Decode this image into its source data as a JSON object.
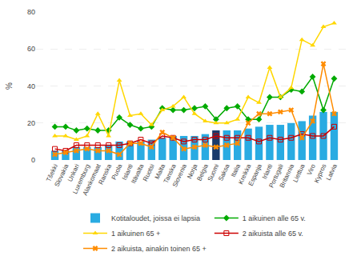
{
  "chart_data": {
    "type": "bar",
    "ylabel": "%",
    "categories": [
      "Tšekki",
      "Slovakia",
      "Unkari",
      "Luxemburg",
      "Alankomaat",
      "Ranska",
      "Puola",
      "Islanti",
      "Itävalta",
      "Ruotsi",
      "Malta",
      "Tanska",
      "Slovenia",
      "Norja",
      "Belgia",
      "Suomi",
      "Saksa",
      "Italia",
      "Kreikka",
      "Espanja",
      "Irlanti",
      "Portugali",
      "Britannia",
      "Liettua",
      "Viro",
      "Kypros",
      "Latvia"
    ],
    "series": [
      {
        "name": "Kotitaloudet, joissa ei lapsia",
        "type": "bar",
        "colors": [
          "#29ABE2",
          "#29ABE2",
          "#29ABE2",
          "#29ABE2",
          "#29ABE2",
          "#29ABE2",
          "#29ABE2",
          "#29ABE2",
          "#29ABE2",
          "#29ABE2",
          "#29ABE2",
          "#29ABE2",
          "#29ABE2",
          "#29ABE2",
          "#29ABE2",
          "#1A3A6B",
          "#29ABE2",
          "#29ABE2",
          "#29ABE2",
          "#29ABE2",
          "#29ABE2",
          "#29ABE2",
          "#29ABE2",
          "#29ABE2",
          "#29ABE2",
          "#29ABE2",
          "#29ABE2"
        ],
        "values": [
          5,
          5,
          7,
          7,
          7,
          8,
          10,
          10,
          10,
          11,
          12,
          13,
          13,
          13,
          14,
          16,
          16,
          16,
          17,
          18,
          19,
          19,
          20,
          21,
          24,
          26,
          26
        ]
      },
      {
        "name": "1 aikuinen alle 65 v.",
        "type": "line",
        "color": "#00AA00",
        "marker": "diamond",
        "values": [
          18,
          18,
          16,
          17,
          16,
          16,
          23,
          19,
          17,
          18,
          28,
          27,
          27,
          28,
          29,
          22,
          28,
          29,
          22,
          22,
          34,
          34,
          38,
          37,
          45,
          27,
          44
        ]
      },
      {
        "name": "1 aikuinen 65 +",
        "type": "line",
        "color": "#FFD700",
        "marker": "triangle-up",
        "values": [
          13,
          13,
          11,
          13,
          25,
          13,
          43,
          24,
          25,
          19,
          27,
          29,
          34,
          25,
          21,
          20,
          20,
          22,
          34,
          31,
          50,
          34,
          39,
          65,
          62,
          72,
          74
        ]
      },
      {
        "name": "2 aikuista alle 65 v.",
        "type": "line",
        "color": "#CC0000",
        "marker": "square-open",
        "values": [
          6,
          5,
          8,
          8,
          8,
          8,
          8,
          9,
          11,
          9,
          13,
          12,
          10,
          11,
          11,
          13,
          12,
          12,
          12,
          10,
          12,
          11,
          12,
          14,
          13,
          13,
          18
        ]
      },
      {
        "name": "2 aikuista, ainakin toinen 65 +",
        "type": "line",
        "color": "#FF8C00",
        "marker": "x",
        "values": [
          3,
          4,
          5,
          6,
          5,
          5,
          3,
          9,
          9,
          7,
          15,
          12,
          6,
          7,
          8,
          7,
          8,
          9,
          20,
          25,
          25,
          26,
          27,
          12,
          21,
          52,
          25
        ]
      }
    ],
    "ylim": [
      0,
      80
    ],
    "yticks": [
      0,
      20,
      40,
      60,
      80
    ],
    "grid": true,
    "legend": "bottom"
  }
}
